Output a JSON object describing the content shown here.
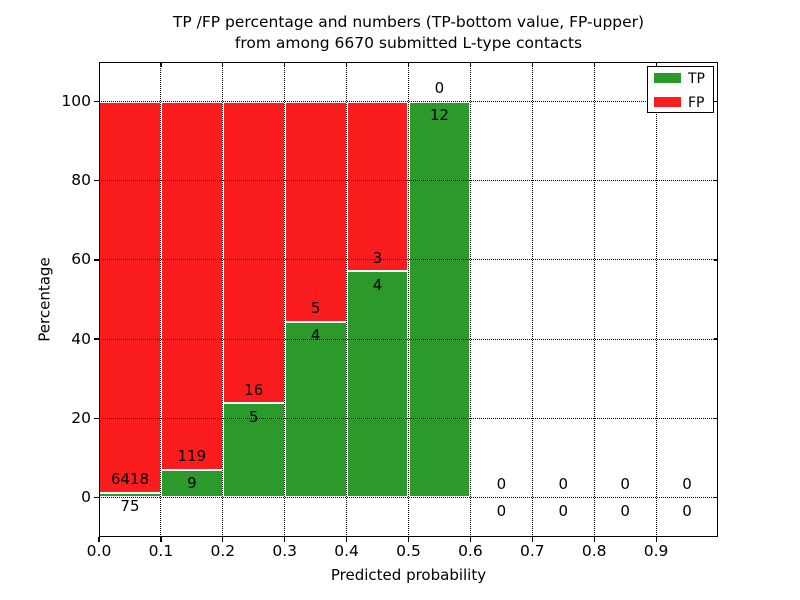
{
  "chart_data": {
    "type": "bar",
    "stacked": true,
    "title_line1": "TP /FP percentage and numbers (TP-bottom value, FP-upper)",
    "title_line2": "from among 6670 submitted L-type contacts",
    "total_contacts": 6670,
    "xlabel": "Predicted probability",
    "ylabel": "Percentage",
    "xlim": [
      0.0,
      1.0
    ],
    "ylim": [
      -10,
      110
    ],
    "bin_width": 0.1,
    "grid": "dotted",
    "x_tick_labels": [
      "0.0",
      "0.1",
      "0.2",
      "0.3",
      "0.4",
      "0.5",
      "0.6",
      "0.7",
      "0.8",
      "0.9"
    ],
    "x_tick_values": [
      0.0,
      0.1,
      0.2,
      0.3,
      0.4,
      0.5,
      0.6,
      0.7,
      0.8,
      0.9
    ],
    "y_tick_labels": [
      "0",
      "20",
      "40",
      "60",
      "80",
      "100"
    ],
    "y_tick_values": [
      0,
      20,
      40,
      60,
      80,
      100
    ],
    "legend": {
      "position": "upper right",
      "entries": [
        {
          "label": "TP",
          "color": "#2b9a2b"
        },
        {
          "label": "FP",
          "color": "#fb1d1d"
        }
      ]
    },
    "bars": [
      {
        "x_start": 0.0,
        "tp": 75,
        "fp": 6418,
        "tp_pct": 1.2
      },
      {
        "x_start": 0.1,
        "tp": 9,
        "fp": 119,
        "tp_pct": 7.0
      },
      {
        "x_start": 0.2,
        "tp": 5,
        "fp": 16,
        "tp_pct": 23.8
      },
      {
        "x_start": 0.3,
        "tp": 4,
        "fp": 5,
        "tp_pct": 44.4
      },
      {
        "x_start": 0.4,
        "tp": 4,
        "fp": 3,
        "tp_pct": 57.1
      },
      {
        "x_start": 0.5,
        "tp": 12,
        "fp": 0,
        "tp_pct": 100
      },
      {
        "x_start": 0.6,
        "tp": 0,
        "fp": 0,
        "tp_pct": null
      },
      {
        "x_start": 0.7,
        "tp": 0,
        "fp": 0,
        "tp_pct": null
      },
      {
        "x_start": 0.8,
        "tp": 0,
        "fp": 0,
        "tp_pct": null
      },
      {
        "x_start": 0.9,
        "tp": 0,
        "fp": 0,
        "tp_pct": null
      }
    ],
    "colors": {
      "tp": "#2b9a2b",
      "fp": "#fb1d1d",
      "bar_edge": "#ffffff",
      "grid": "#000000",
      "text": "#000000",
      "background": "#ffffff"
    }
  }
}
